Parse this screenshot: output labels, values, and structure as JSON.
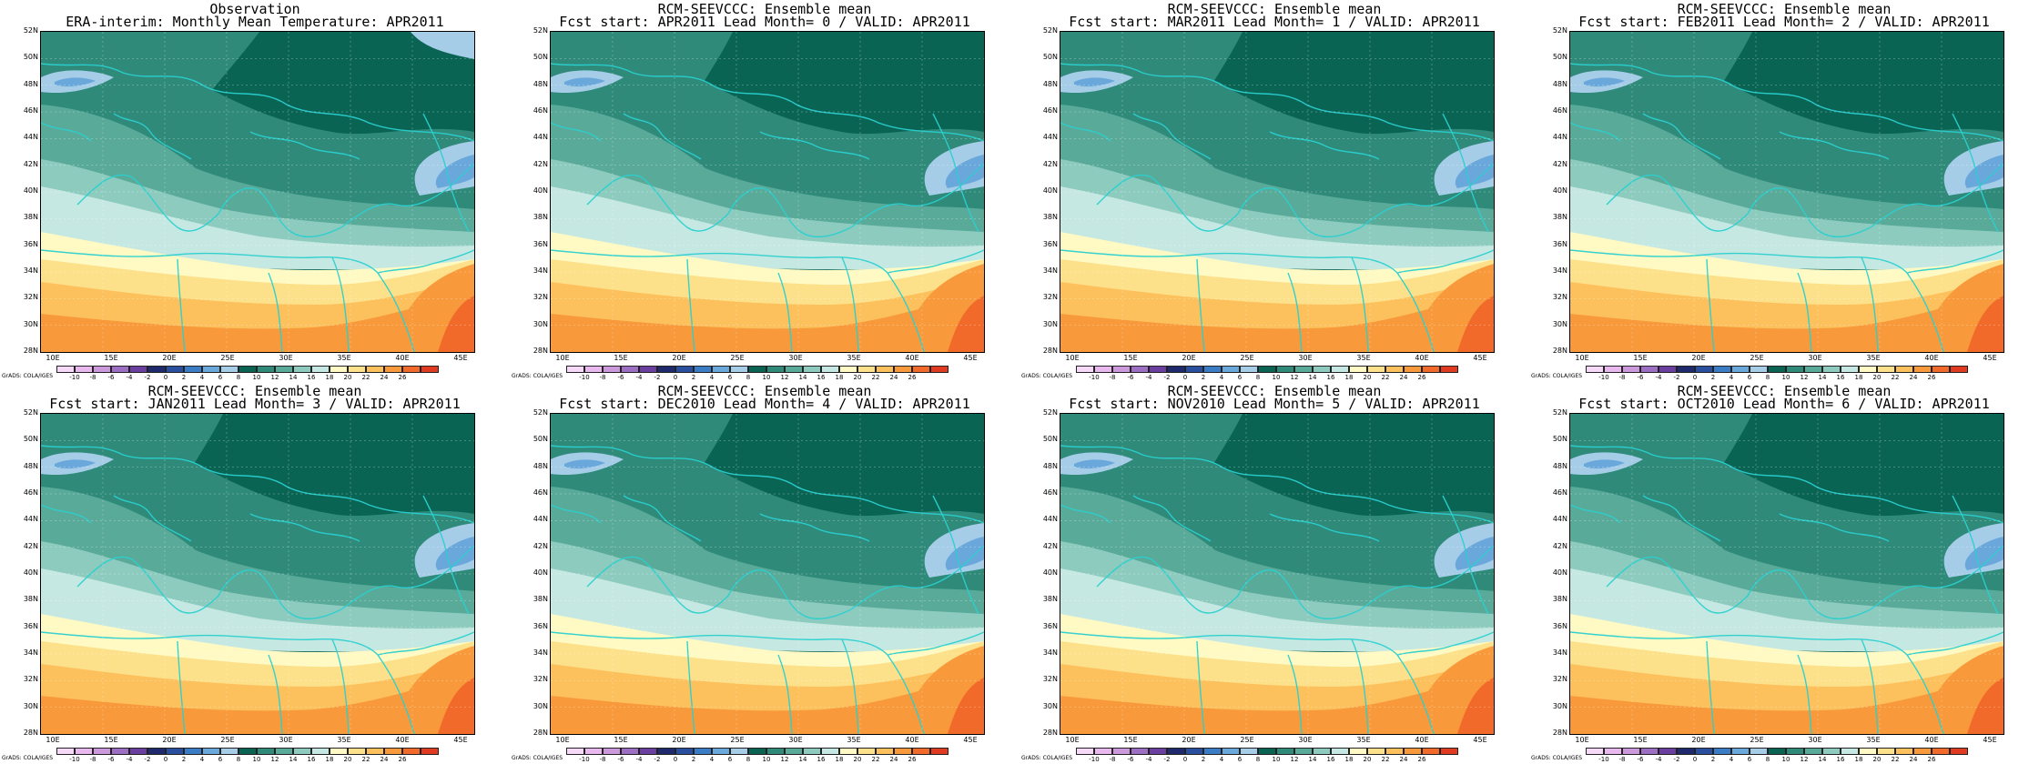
{
  "panels": [
    {
      "title1": "Observation",
      "title2": "ERA-interim:  Monthly Mean Temperature: APR2011"
    },
    {
      "title1": "RCM-SEEVCCC: Ensemble mean",
      "title2": "Fcst start: APR2011  Lead Month= 0 / VALID: APR2011"
    },
    {
      "title1": "RCM-SEEVCCC: Ensemble mean",
      "title2": "Fcst start: MAR2011  Lead Month= 1 / VALID: APR2011"
    },
    {
      "title1": "RCM-SEEVCCC: Ensemble mean",
      "title2": "Fcst start: FEB2011  Lead Month= 2 / VALID: APR2011"
    },
    {
      "title1": "RCM-SEEVCCC: Ensemble mean",
      "title2": "Fcst start: JAN2011  Lead Month= 3 / VALID: APR2011"
    },
    {
      "title1": "RCM-SEEVCCC: Ensemble mean",
      "title2": "Fcst start: DEC2010  Lead Month= 4 / VALID: APR2011"
    },
    {
      "title1": "RCM-SEEVCCC: Ensemble mean",
      "title2": "Fcst start: NOV2010  Lead Month= 5 / VALID: APR2011"
    },
    {
      "title1": "RCM-SEEVCCC: Ensemble mean",
      "title2": "Fcst start: OCT2010  Lead Month= 6 / VALID: APR2011"
    }
  ],
  "y_ticks": [
    "52N",
    "50N",
    "48N",
    "46N",
    "44N",
    "42N",
    "40N",
    "38N",
    "36N",
    "34N",
    "32N",
    "30N",
    "28N"
  ],
  "x_ticks": [
    "10E",
    "15E",
    "20E",
    "25E",
    "30E",
    "35E",
    "40E",
    "45E"
  ],
  "colorbar": {
    "labels": [
      "-10",
      "-8",
      "-6",
      "-4",
      "-2",
      "0",
      "2",
      "4",
      "6",
      "8",
      "10",
      "12",
      "14",
      "16",
      "18",
      "20",
      "22",
      "24",
      "26"
    ],
    "colors": [
      "#f6d8f8",
      "#e8b8ee",
      "#cc99dd",
      "#9d6fc4",
      "#6a3fa0",
      "#1f2a6e",
      "#2a4ea0",
      "#3a7cc6",
      "#6aa8dc",
      "#a6cde8",
      "#0a6454",
      "#2f8a7a",
      "#5aaa9a",
      "#8ecbbf",
      "#c6e8e2",
      "#fffac4",
      "#fde08a",
      "#fcc05c",
      "#f89a3c",
      "#f26a2a",
      "#e03a20"
    ]
  },
  "credit": "GrADS: COLA/IGES",
  "colors": {
    "coast": "#2ad0d0",
    "c_dark": "#0a6454",
    "c_mid": "#2f8a7a",
    "c_med": "#5aaa9a",
    "c_light": "#8ecbbf",
    "c_vlight": "#c6e8e2",
    "c_yellow": "#fffac4",
    "c_y2": "#fde08a",
    "c_orange1": "#fcc05c",
    "c_orange2": "#f89a3c",
    "c_red": "#f26a2a",
    "c_blue": "#a6cde8",
    "c_blue2": "#6aa8dc"
  }
}
